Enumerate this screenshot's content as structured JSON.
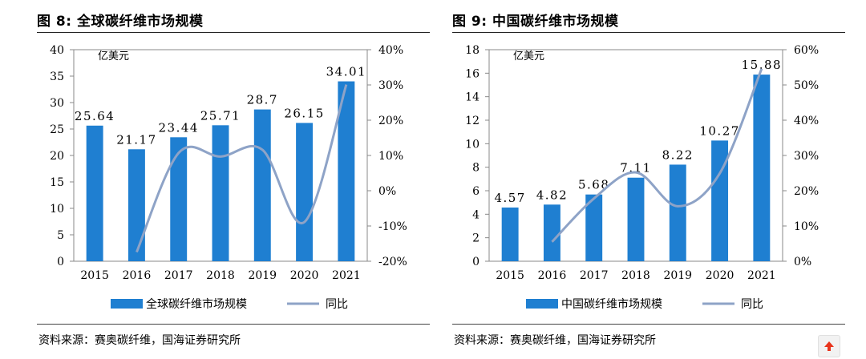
{
  "panels": [
    {
      "title": "图 8:  全球碳纤维市场规模",
      "unit": "亿美元",
      "source": "资料来源：赛奥碳纤维，国海证券研究所",
      "chart_data": {
        "type": "bar",
        "categories": [
          "2015",
          "2016",
          "2017",
          "2018",
          "2019",
          "2020",
          "2021"
        ],
        "series": [
          {
            "name": "全球碳纤维市场规模",
            "kind": "bar",
            "axis": "left",
            "values": [
              25.64,
              21.17,
              23.44,
              25.71,
              28.7,
              26.15,
              34.01
            ],
            "labels": [
              "25.64",
              "21.17",
              "23.44",
              "25.71",
              "28.7",
              "26.15",
              "34.01"
            ]
          },
          {
            "name": "同比",
            "kind": "line",
            "axis": "right",
            "values": [
              null,
              -17.4,
              10.7,
              9.7,
              11.6,
              -8.9,
              30.1
            ]
          }
        ],
        "ylim_left": [
          0,
          40
        ],
        "yticks_left": [
          "0",
          "5",
          "10",
          "15",
          "20",
          "25",
          "30",
          "35",
          "40"
        ],
        "ylim_right": [
          -20,
          40
        ],
        "yticks_right": [
          "-20%",
          "-10%",
          "0%",
          "10%",
          "20%",
          "30%",
          "40%"
        ],
        "legend_position": "bottom"
      }
    },
    {
      "title": "图 9:  中国碳纤维市场规模",
      "unit": "亿美元",
      "source": "资料来源：赛奥碳纤维，国海证券研究所",
      "chart_data": {
        "type": "bar",
        "categories": [
          "2015",
          "2016",
          "2017",
          "2018",
          "2019",
          "2020",
          "2021"
        ],
        "series": [
          {
            "name": "中国碳纤维市场规模",
            "kind": "bar",
            "axis": "left",
            "values": [
              4.57,
              4.82,
              5.68,
              7.11,
              8.22,
              10.27,
              15.88
            ],
            "labels": [
              "4.57",
              "4.82",
              "5.68",
              "7.11",
              "8.22",
              "10.27",
              "15.88"
            ]
          },
          {
            "name": "同比",
            "kind": "line",
            "axis": "right",
            "values": [
              null,
              5.5,
              17.8,
              25.2,
              15.6,
              24.9,
              54.6
            ]
          }
        ],
        "ylim_left": [
          0,
          18
        ],
        "yticks_left": [
          "0",
          "2",
          "4",
          "6",
          "8",
          "10",
          "12",
          "14",
          "16",
          "18"
        ],
        "ylim_right": [
          0,
          60
        ],
        "yticks_right": [
          "0%",
          "10%",
          "20%",
          "30%",
          "40%",
          "50%",
          "60%"
        ],
        "legend_position": "bottom"
      }
    }
  ],
  "colors": {
    "bar": "#1f7fd1",
    "line": "#8ea3c7",
    "axis": "#888888",
    "up_button": "#e8341c"
  },
  "icons": {
    "scroll_top": "arrow-up-icon"
  }
}
